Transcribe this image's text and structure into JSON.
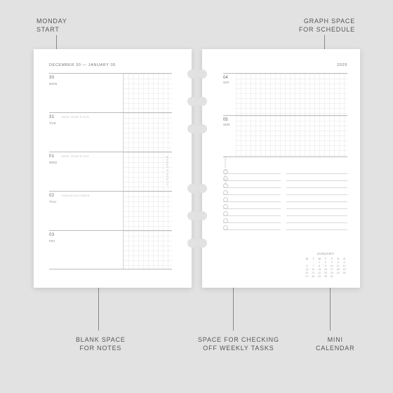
{
  "labels": {
    "monday_start": "MONDAY\nSTART",
    "graph_space": "GRAPH SPACE\nFOR SCHEDULE",
    "blank_notes": "BLANK SPACE\nFOR NOTES",
    "tasks": "SPACE FOR CHECKING\nOFF WEEKLY TASKS",
    "mini_cal": "MINI\nCALENDAR"
  },
  "left_page": {
    "date_range": "DECEMBER 30 — JANUARY 05",
    "days": [
      {
        "num": "30",
        "name": "MON",
        "note": ""
      },
      {
        "num": "31",
        "name": "TUE",
        "note": "NEW YEAR'S EVE"
      },
      {
        "num": "01",
        "name": "WED",
        "note": "NEW YEAR'S DAY"
      },
      {
        "num": "02",
        "name": "THU",
        "note": "HANUKKAH ENDS"
      },
      {
        "num": "03",
        "name": "FRI",
        "note": ""
      }
    ],
    "brand": "CLOTH & PAPER"
  },
  "right_page": {
    "year": "2025",
    "weekend": [
      {
        "num": "04",
        "name": "SAT"
      },
      {
        "num": "05",
        "name": "SUN"
      }
    ],
    "task_count": 9,
    "note_line_count": 9,
    "brand": "CLOTH & PAPER",
    "mini_calendar": {
      "month": "JANUARY",
      "dow": [
        "M",
        "T",
        "W",
        "T",
        "F",
        "S",
        "S"
      ],
      "weeks": [
        [
          "",
          "",
          "1",
          "2",
          "3",
          "4",
          "5"
        ],
        [
          "6",
          "7",
          "8",
          "9",
          "10",
          "11",
          "12"
        ],
        [
          "13",
          "14",
          "15",
          "16",
          "17",
          "18",
          "19"
        ],
        [
          "20",
          "21",
          "22",
          "23",
          "24",
          "25",
          "26"
        ],
        [
          "27",
          "28",
          "29",
          "30",
          "31",
          "",
          ""
        ]
      ]
    }
  },
  "holes_top": [
    99,
    138,
    177,
    262,
    301,
    340
  ],
  "styling": {
    "background": "#e2e2e2",
    "page_bg": "#ffffff",
    "rule_color": "#bbbbbb",
    "grid_color": "#e6e6e6",
    "label_color": "#555555",
    "pointer_color": "#888888"
  }
}
